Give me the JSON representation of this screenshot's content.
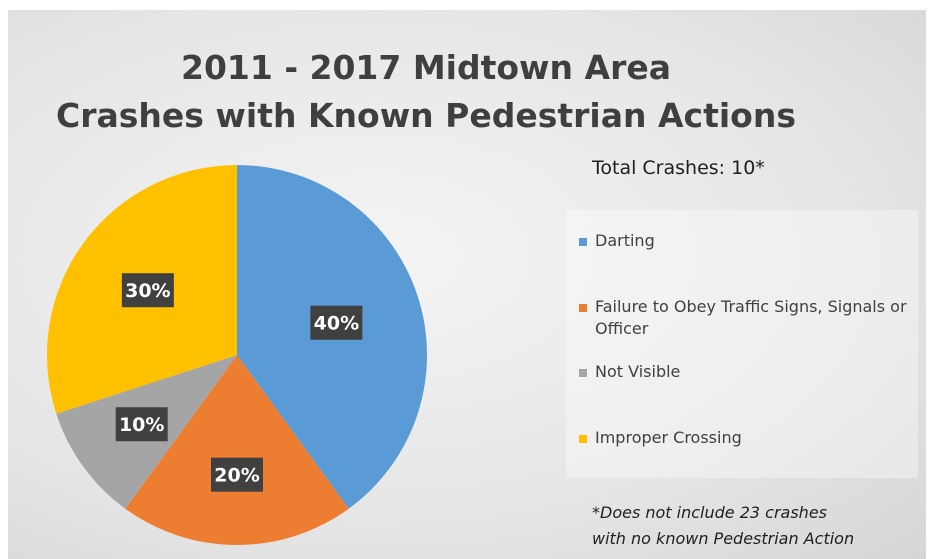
{
  "chart_data": {
    "type": "pie",
    "title": [
      "2011 - 2017 Midtown Area",
      "Crashes with Known Pedestrian Actions"
    ],
    "categories": [
      "Darting",
      "Failure to Obey Traffic Signs, Signals or Officer",
      "Not Visible",
      "Improper Crossing"
    ],
    "values": [
      40,
      20,
      10,
      30
    ],
    "data_labels": [
      "40%",
      "20%",
      "10%",
      "30%"
    ],
    "colors": [
      "#5b9bd5",
      "#ed7d31",
      "#a5a5a5",
      "#ffc000"
    ],
    "legend_placement": "right",
    "legend_header": "Total Crashes: 10*",
    "footnote": [
      "*Does not include 23 crashes",
      "with no known Pedestrian Action"
    ]
  }
}
